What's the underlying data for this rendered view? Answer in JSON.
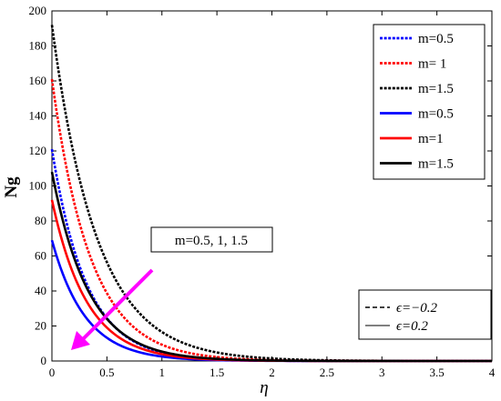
{
  "chart_data": {
    "type": "line",
    "title": "",
    "xlabel": "η",
    "ylabel": "Ng",
    "xlim": [
      0,
      4
    ],
    "ylim": [
      0,
      200
    ],
    "xticks": [
      "0",
      "0.5",
      "1",
      "1.5",
      "2",
      "2.5",
      "3",
      "3.5",
      "4"
    ],
    "yticks": [
      "0",
      "20",
      "40",
      "60",
      "80",
      "100",
      "120",
      "140",
      "160",
      "180",
      "200"
    ],
    "grid": false,
    "legend_position": "top-right",
    "series": [
      {
        "name": "m=0.5",
        "style": "dotted",
        "color": "#0000ff",
        "y0": 121,
        "decay": 3.2
      },
      {
        "name": "m= 1",
        "style": "dotted",
        "color": "#ff0000",
        "y0": 161,
        "decay": 2.85
      },
      {
        "name": "m=1.5",
        "style": "dotted",
        "color": "#000000",
        "y0": 192,
        "decay": 2.45
      },
      {
        "name": "m=0.5",
        "style": "solid",
        "color": "#0000ff",
        "y0": 69,
        "decay": 3.3
      },
      {
        "name": "m=1",
        "style": "solid",
        "color": "#ff0000",
        "y0": 92,
        "decay": 3.15
      },
      {
        "name": "m=1.5",
        "style": "solid",
        "color": "#000000",
        "y0": 108,
        "decay": 3.0
      }
    ],
    "annotation": {
      "text": "m=0.5, 1, 1.5",
      "arrow_color": "#ff00ff"
    },
    "line_style_legend": [
      {
        "label": "ϵ=−0.2",
        "style": "dashed"
      },
      {
        "label": "ϵ=0.2",
        "style": "solid"
      }
    ]
  }
}
